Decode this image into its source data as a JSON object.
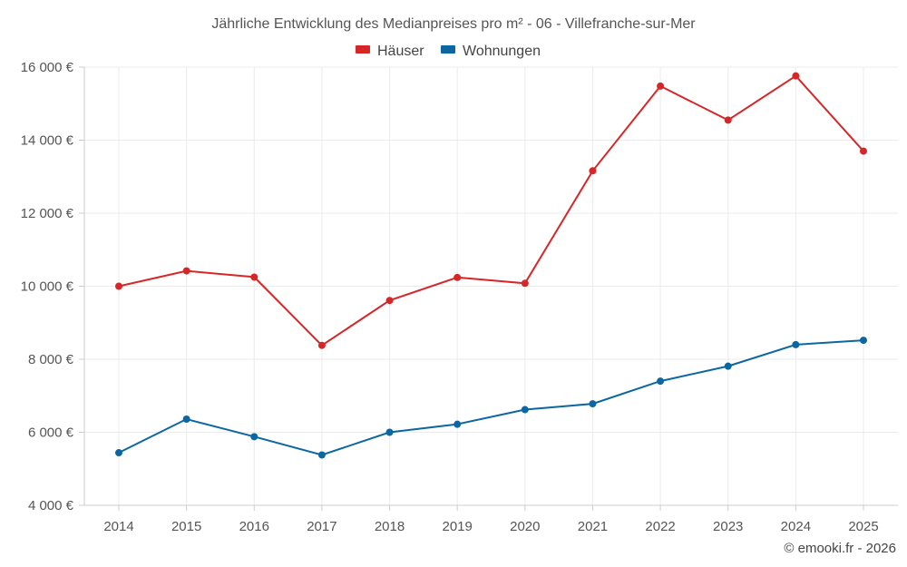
{
  "chart_data": {
    "type": "line",
    "title": "Jährliche Entwicklung des Medianpreises pro m² - 06 - Villefranche-sur-Mer",
    "categories": [
      "2014",
      "2015",
      "2016",
      "2017",
      "2018",
      "2019",
      "2020",
      "2021",
      "2022",
      "2023",
      "2024",
      "2025"
    ],
    "ylim": [
      4000,
      16000
    ],
    "yticks": [
      4000,
      6000,
      8000,
      10000,
      12000,
      14000,
      16000
    ],
    "ytick_labels": [
      "4 000 €",
      "6 000 €",
      "8 000 €",
      "10 000 €",
      "12 000 €",
      "14 000 €",
      "16 000 €"
    ],
    "xlabel": "",
    "ylabel": "",
    "legend_position": "top-center",
    "grid": true,
    "series": [
      {
        "name": "Häuser",
        "color": "#d62728",
        "values": [
          10000,
          10420,
          10250,
          8380,
          9610,
          10240,
          10080,
          13160,
          15480,
          14550,
          15760,
          13700
        ]
      },
      {
        "name": "Wohnungen",
        "color": "#0b66a1",
        "values": [
          5440,
          6360,
          5880,
          5380,
          6000,
          6220,
          6620,
          6780,
          7400,
          7810,
          8400,
          8520
        ]
      }
    ]
  },
  "footer": {
    "credit": "© emooki.fr - 2026"
  }
}
